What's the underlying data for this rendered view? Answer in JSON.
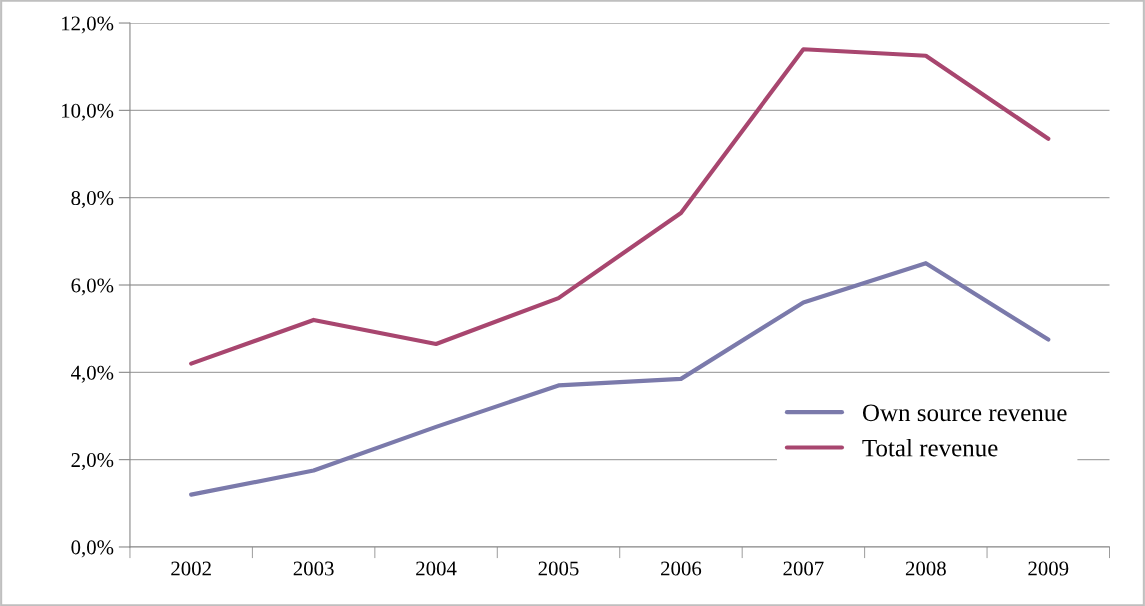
{
  "chart_data": {
    "type": "line",
    "categories": [
      "2002",
      "2003",
      "2004",
      "2005",
      "2006",
      "2007",
      "2008",
      "2009"
    ],
    "series": [
      {
        "name": "Own source revenue",
        "color": "#7b7aab",
        "values": [
          1.2,
          1.75,
          2.75,
          3.7,
          3.85,
          5.6,
          6.5,
          4.75
        ]
      },
      {
        "name": "Total revenue",
        "color": "#a8466f",
        "values": [
          4.2,
          5.2,
          4.65,
          5.7,
          7.65,
          11.4,
          11.25,
          9.35
        ]
      }
    ],
    "ylim": [
      0,
      12
    ],
    "yticks": [
      {
        "value": 0,
        "label": "0,0%"
      },
      {
        "value": 2,
        "label": "2,0%"
      },
      {
        "value": 4,
        "label": "4,0%"
      },
      {
        "value": 6,
        "label": "6,0%"
      },
      {
        "value": 8,
        "label": "8,0%"
      },
      {
        "value": 10,
        "label": "10,0%"
      },
      {
        "value": 12,
        "label": "12,0%"
      }
    ],
    "grid": "y",
    "legend": "lower right",
    "marker": "none",
    "line_style": "solid"
  }
}
